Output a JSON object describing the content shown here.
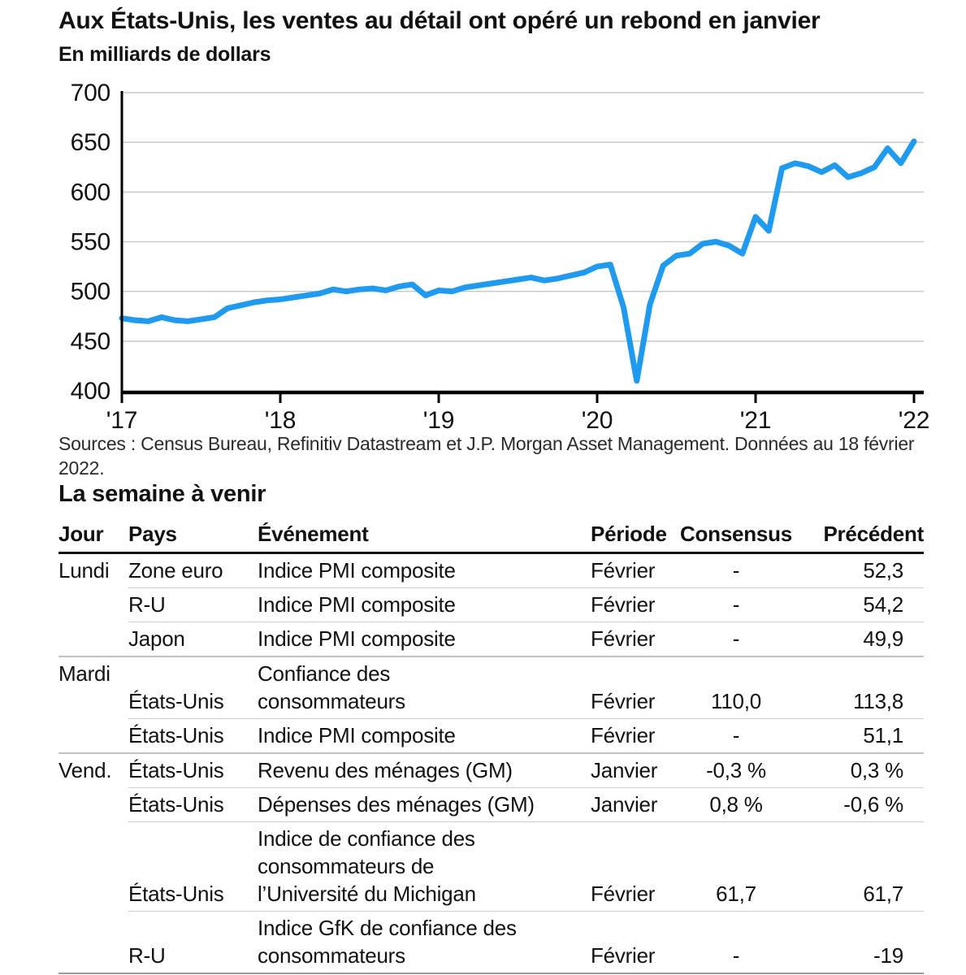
{
  "header": {
    "title": "Aux États-Unis, les ventes au détail ont opéré un rebond en janvier",
    "subtitle": "En milliards de dollars"
  },
  "chart_data": {
    "type": "line",
    "title": "Aux États-Unis, les ventes au détail ont opéré un rebond en janvier",
    "ylabel": "En milliards de dollars",
    "xlabel": "",
    "grid": true,
    "legend_position": "none",
    "line_color": "#1e9bf0",
    "ylim": [
      400,
      700
    ],
    "y_ticks": [
      400,
      450,
      500,
      550,
      600,
      650,
      700
    ],
    "x_tick_labels": [
      "'17",
      "'18",
      "'19",
      "'20",
      "'21",
      "'22"
    ],
    "x_frequency": "monthly",
    "x_range": "janvier 2017 – janvier 2022",
    "series": [
      {
        "name": "Ventes au détail aux États-Unis (milliards de dollars)",
        "values": [
          473,
          471,
          470,
          474,
          471,
          470,
          472,
          474,
          483,
          486,
          489,
          491,
          492,
          494,
          496,
          498,
          502,
          500,
          502,
          503,
          501,
          505,
          507,
          496,
          501,
          500,
          504,
          506,
          508,
          510,
          512,
          514,
          511,
          513,
          516,
          519,
          525,
          527,
          484,
          410,
          487,
          526,
          536,
          538,
          548,
          550,
          546,
          538,
          575,
          561,
          624,
          629,
          626,
          620,
          627,
          615,
          619,
          625,
          644,
          629,
          651
        ]
      }
    ]
  },
  "sources": "Sources : Census Bureau, Refinitiv Datastream et J.P. Morgan Asset Management. Données au 18 février 2022.",
  "week": {
    "heading": "La semaine à venir",
    "table": {
      "headers": [
        "Jour",
        "Pays",
        "Événement",
        "Période",
        "Consensus",
        "Précédent"
      ],
      "rows": [
        {
          "day": "Lundi",
          "country": "Zone euro",
          "event": [
            "Indice PMI composite"
          ],
          "period": "Février",
          "consensus": "-",
          "previous": "52,3",
          "group_end": false
        },
        {
          "day": "",
          "country": "R-U",
          "event": [
            "Indice PMI composite"
          ],
          "period": "Février",
          "consensus": "-",
          "previous": "54,2",
          "group_end": false
        },
        {
          "day": "",
          "country": "Japon",
          "event": [
            "Indice PMI composite"
          ],
          "period": "Février",
          "consensus": "-",
          "previous": "49,9",
          "group_end": true
        },
        {
          "day": "Mardi",
          "country": "États-Unis",
          "event": [
            "Confiance des",
            "consommateurs"
          ],
          "period": "Février",
          "consensus": "110,0",
          "previous": "113,8",
          "group_end": false
        },
        {
          "day": "",
          "country": "États-Unis",
          "event": [
            "Indice PMI composite"
          ],
          "period": "Février",
          "consensus": "-",
          "previous": "51,1",
          "group_end": true
        },
        {
          "day": "Vend.",
          "country": "États-Unis",
          "event": [
            "Revenu des ménages (GM)"
          ],
          "period": "Janvier",
          "consensus": "-0,3 %",
          "previous": "0,3 %",
          "group_end": false
        },
        {
          "day": "",
          "country": "États-Unis",
          "event": [
            "Dépenses des ménages (GM)"
          ],
          "period": "Janvier",
          "consensus": "0,8 %",
          "previous": "-0,6 %",
          "group_end": false
        },
        {
          "day": "",
          "country": "États-Unis",
          "event": [
            "Indice de confiance des",
            "consommateurs de",
            "l’Université du Michigan"
          ],
          "period": "Février",
          "consensus": "61,7",
          "previous": "61,7",
          "group_end": false
        },
        {
          "day": "",
          "country": "R-U",
          "event": [
            "Indice GfK de confiance des",
            "consommateurs"
          ],
          "period": "Février",
          "consensus": "-",
          "previous": "-19",
          "group_end": false
        }
      ]
    }
  }
}
